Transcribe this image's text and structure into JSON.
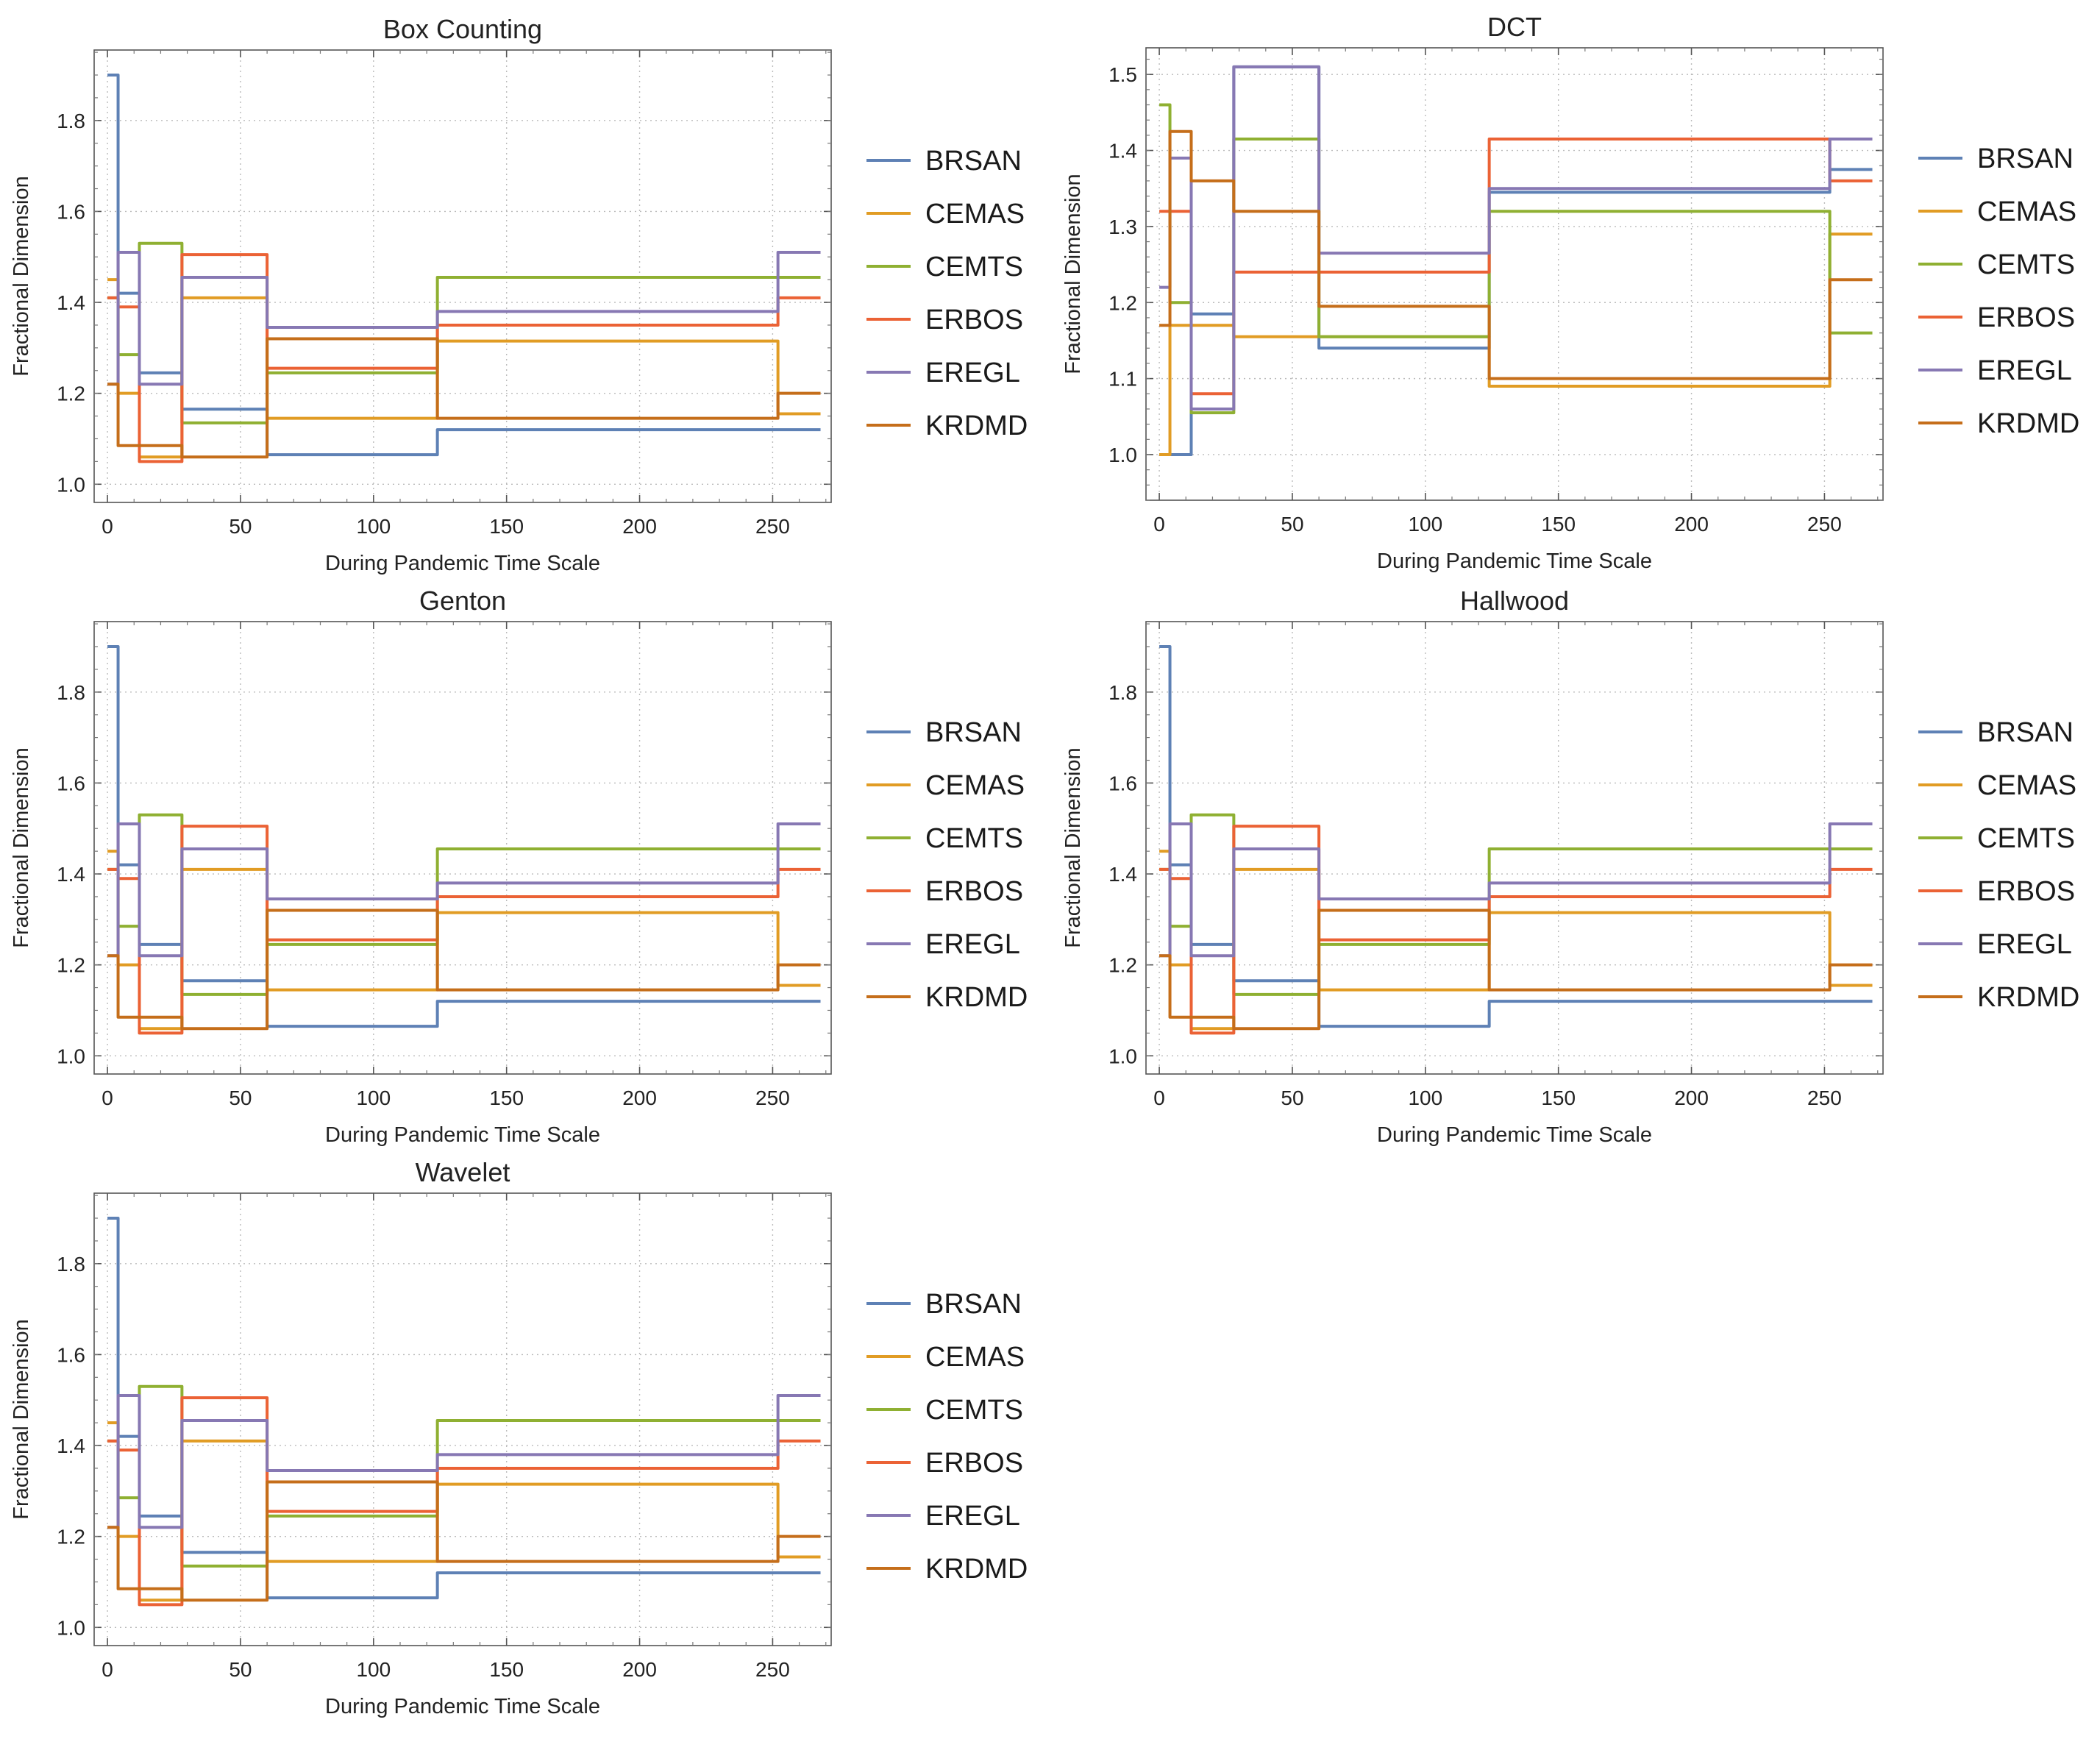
{
  "panels": [
    {
      "title": "Box Counting",
      "xlabel": "During Pandemic Time Scale",
      "ylabel": "Fractional Dimension",
      "xlim": [
        -5,
        272
      ],
      "ylim": [
        0.96,
        1.955
      ],
      "xticks": [
        0,
        50,
        100,
        150,
        200,
        250
      ],
      "yticks": [
        "1.0",
        "1.2",
        "1.4",
        "1.6",
        "1.8"
      ]
    },
    {
      "title": "DCT",
      "xlabel": "During Pandemic Time Scale",
      "ylabel": "Fractional Dimension",
      "xlim": [
        -5,
        272
      ],
      "ylim": [
        0.94,
        1.535
      ],
      "xticks": [
        0,
        50,
        100,
        150,
        200,
        250
      ],
      "yticks": [
        "1.0",
        "1.1",
        "1.2",
        "1.3",
        "1.4",
        "1.5"
      ]
    },
    {
      "title": "Genton",
      "xlabel": "During Pandemic Time Scale",
      "ylabel": "Fractional Dimension",
      "xlim": [
        -5,
        272
      ],
      "ylim": [
        0.96,
        1.955
      ],
      "xticks": [
        0,
        50,
        100,
        150,
        200,
        250
      ],
      "yticks": [
        "1.0",
        "1.2",
        "1.4",
        "1.6",
        "1.8"
      ]
    },
    {
      "title": "Hallwood",
      "xlabel": "During Pandemic Time Scale",
      "ylabel": "Fractional Dimension",
      "xlim": [
        -5,
        272
      ],
      "ylim": [
        0.96,
        1.955
      ],
      "xticks": [
        0,
        50,
        100,
        150,
        200,
        250
      ],
      "yticks": [
        "1.0",
        "1.2",
        "1.4",
        "1.6",
        "1.8"
      ]
    },
    {
      "title": "Wavelet",
      "xlabel": "During Pandemic Time Scale",
      "ylabel": "Fractional Dimension",
      "xlim": [
        -5,
        272
      ],
      "ylim": [
        0.96,
        1.955
      ],
      "xticks": [
        0,
        50,
        100,
        150,
        200,
        250
      ],
      "yticks": [
        "1.0",
        "1.2",
        "1.4",
        "1.6",
        "1.8"
      ]
    }
  ],
  "legend": [
    "BRSAN",
    "CEMAS",
    "CEMTS",
    "ERBOS",
    "EREGL",
    "KRDMD"
  ],
  "colors": {
    "BRSAN": "#5E81B5",
    "CEMAS": "#E19C24",
    "CEMTS": "#8FB032",
    "ERBOS": "#EB6235",
    "EREGL": "#8778B3",
    "KRDMD": "#C56E1A"
  },
  "chart_data": [
    {
      "panel": "Box Counting",
      "type": "line",
      "x": [
        0,
        4,
        12,
        28,
        60,
        124,
        252,
        258,
        268
      ],
      "series": [
        {
          "name": "BRSAN",
          "values": [
            1.9,
            1.42,
            1.245,
            1.165,
            1.065,
            1.12,
            1.12,
            1.12,
            1.12
          ]
        },
        {
          "name": "CEMAS",
          "values": [
            1.45,
            1.2,
            1.06,
            1.41,
            1.145,
            1.315,
            1.155,
            1.155,
            1.155
          ]
        },
        {
          "name": "CEMTS",
          "values": [
            1.41,
            1.285,
            1.53,
            1.135,
            1.245,
            1.455,
            1.455,
            1.455,
            1.455
          ]
        },
        {
          "name": "ERBOS",
          "values": [
            1.41,
            1.39,
            1.05,
            1.505,
            1.255,
            1.35,
            1.41,
            1.41,
            1.41
          ]
        },
        {
          "name": "EREGL",
          "values": [
            1.22,
            1.51,
            1.22,
            1.455,
            1.345,
            1.38,
            1.51,
            1.51,
            1.51
          ]
        },
        {
          "name": "KRDMD",
          "values": [
            1.22,
            1.085,
            1.085,
            1.06,
            1.32,
            1.145,
            1.2,
            1.2,
            1.2
          ]
        }
      ]
    },
    {
      "panel": "DCT",
      "type": "line",
      "x": [
        0,
        4,
        12,
        28,
        60,
        124,
        252,
        258,
        268
      ],
      "series": [
        {
          "name": "BRSAN",
          "values": [
            1.0,
            1.0,
            1.185,
            1.51,
            1.14,
            1.345,
            1.375,
            1.375,
            1.375
          ]
        },
        {
          "name": "CEMAS",
          "values": [
            1.0,
            1.17,
            1.17,
            1.155,
            1.155,
            1.09,
            1.29,
            1.29,
            1.29
          ]
        },
        {
          "name": "CEMTS",
          "values": [
            1.46,
            1.2,
            1.055,
            1.415,
            1.155,
            1.32,
            1.16,
            1.16,
            1.16
          ]
        },
        {
          "name": "ERBOS",
          "values": [
            1.32,
            1.32,
            1.08,
            1.24,
            1.24,
            1.415,
            1.36,
            1.36,
            1.36
          ]
        },
        {
          "name": "EREGL",
          "values": [
            1.22,
            1.39,
            1.06,
            1.51,
            1.265,
            1.35,
            1.415,
            1.415,
            1.415
          ]
        },
        {
          "name": "KRDMD",
          "values": [
            1.17,
            1.425,
            1.36,
            1.32,
            1.195,
            1.1,
            1.23,
            1.23,
            1.23
          ]
        }
      ]
    },
    {
      "panel": "Genton",
      "type": "line",
      "x": [
        0,
        4,
        12,
        28,
        60,
        124,
        252,
        258,
        268
      ],
      "series": [
        {
          "name": "BRSAN",
          "values": [
            1.9,
            1.42,
            1.245,
            1.165,
            1.065,
            1.12,
            1.12,
            1.12,
            1.12
          ]
        },
        {
          "name": "CEMAS",
          "values": [
            1.45,
            1.2,
            1.06,
            1.41,
            1.145,
            1.315,
            1.155,
            1.155,
            1.155
          ]
        },
        {
          "name": "CEMTS",
          "values": [
            1.41,
            1.285,
            1.53,
            1.135,
            1.245,
            1.455,
            1.455,
            1.455,
            1.455
          ]
        },
        {
          "name": "ERBOS",
          "values": [
            1.41,
            1.39,
            1.05,
            1.505,
            1.255,
            1.35,
            1.41,
            1.41,
            1.41
          ]
        },
        {
          "name": "EREGL",
          "values": [
            1.22,
            1.51,
            1.22,
            1.455,
            1.345,
            1.38,
            1.51,
            1.51,
            1.51
          ]
        },
        {
          "name": "KRDMD",
          "values": [
            1.22,
            1.085,
            1.085,
            1.06,
            1.32,
            1.145,
            1.2,
            1.2,
            1.2
          ]
        }
      ]
    },
    {
      "panel": "Hallwood",
      "type": "line",
      "x": [
        0,
        4,
        12,
        28,
        60,
        124,
        252,
        258,
        268
      ],
      "series": [
        {
          "name": "BRSAN",
          "values": [
            1.9,
            1.42,
            1.245,
            1.165,
            1.065,
            1.12,
            1.12,
            1.12,
            1.12
          ]
        },
        {
          "name": "CEMAS",
          "values": [
            1.45,
            1.2,
            1.06,
            1.41,
            1.145,
            1.315,
            1.155,
            1.155,
            1.155
          ]
        },
        {
          "name": "CEMTS",
          "values": [
            1.41,
            1.285,
            1.53,
            1.135,
            1.245,
            1.455,
            1.455,
            1.455,
            1.455
          ]
        },
        {
          "name": "ERBOS",
          "values": [
            1.41,
            1.39,
            1.05,
            1.505,
            1.255,
            1.35,
            1.41,
            1.41,
            1.41
          ]
        },
        {
          "name": "EREGL",
          "values": [
            1.22,
            1.51,
            1.22,
            1.455,
            1.345,
            1.38,
            1.51,
            1.51,
            1.51
          ]
        },
        {
          "name": "KRDMD",
          "values": [
            1.22,
            1.085,
            1.085,
            1.06,
            1.32,
            1.145,
            1.2,
            1.2,
            1.2
          ]
        }
      ]
    },
    {
      "panel": "Wavelet",
      "type": "line",
      "x": [
        0,
        4,
        12,
        28,
        60,
        124,
        252,
        258,
        268
      ],
      "series": [
        {
          "name": "BRSAN",
          "values": [
            1.9,
            1.42,
            1.245,
            1.165,
            1.065,
            1.12,
            1.12,
            1.12,
            1.12
          ]
        },
        {
          "name": "CEMAS",
          "values": [
            1.45,
            1.2,
            1.06,
            1.41,
            1.145,
            1.315,
            1.155,
            1.155,
            1.155
          ]
        },
        {
          "name": "CEMTS",
          "values": [
            1.41,
            1.285,
            1.53,
            1.135,
            1.245,
            1.455,
            1.455,
            1.455,
            1.455
          ]
        },
        {
          "name": "ERBOS",
          "values": [
            1.41,
            1.39,
            1.05,
            1.505,
            1.255,
            1.35,
            1.41,
            1.41,
            1.41
          ]
        },
        {
          "name": "EREGL",
          "values": [
            1.22,
            1.51,
            1.22,
            1.455,
            1.345,
            1.38,
            1.51,
            1.51,
            1.51
          ]
        },
        {
          "name": "KRDMD",
          "values": [
            1.22,
            1.085,
            1.085,
            1.06,
            1.32,
            1.145,
            1.2,
            1.2,
            1.2
          ]
        }
      ]
    }
  ]
}
